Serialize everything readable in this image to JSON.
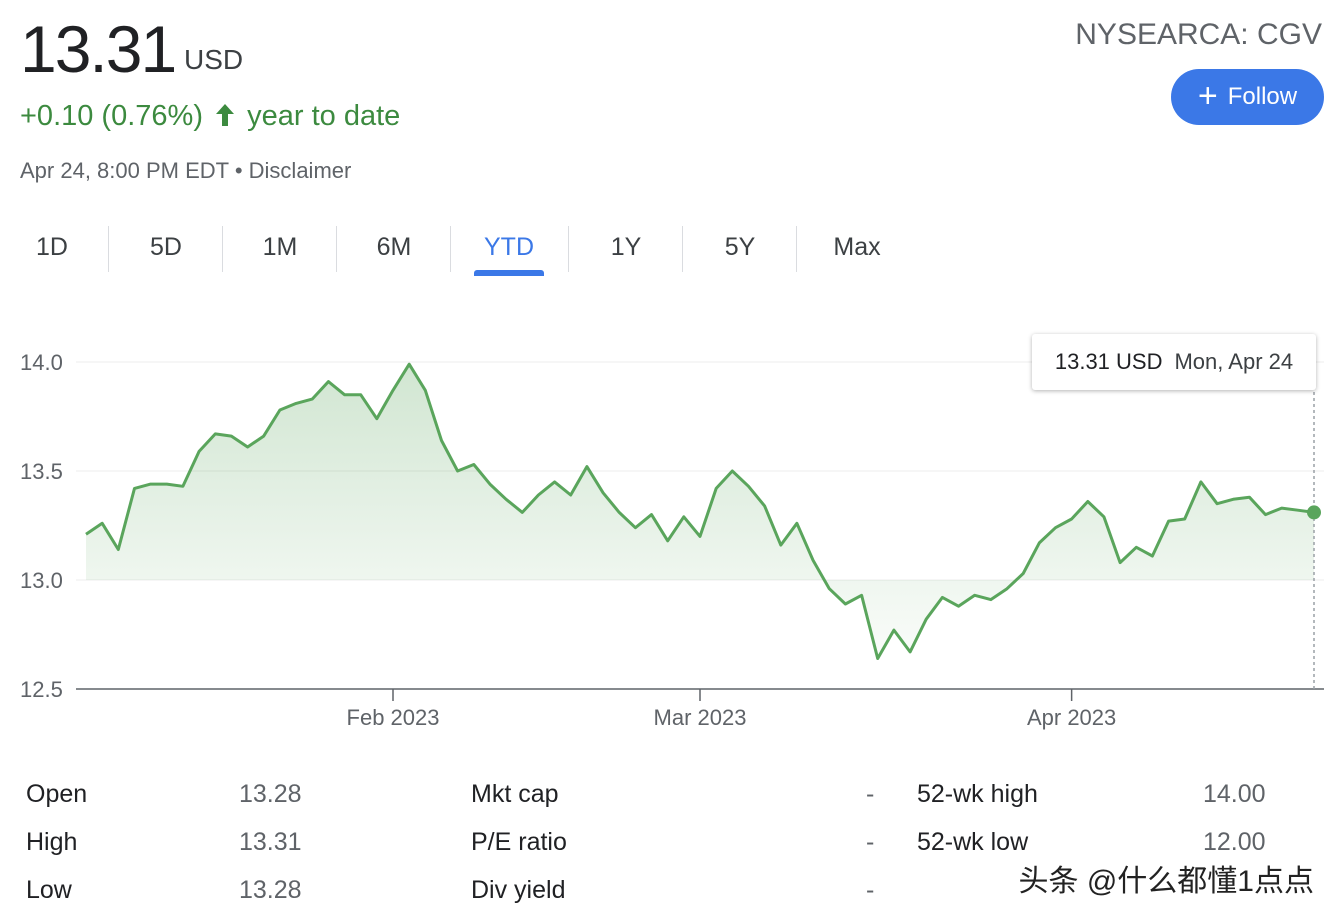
{
  "quote": {
    "price": "13.31",
    "currency": "USD",
    "change": "+0.10 (0.76%)",
    "period": "year to date",
    "timestamp": "Apr 24, 8:00 PM EDT",
    "disclaimer": "Disclaimer",
    "separator": "•",
    "ticker": "NYSEARCA: CGV",
    "follow_label": "Follow"
  },
  "tabs": [
    "1D",
    "5D",
    "1M",
    "6M",
    "YTD",
    "1Y",
    "5Y",
    "Max"
  ],
  "active_tab": "YTD",
  "tooltip": {
    "price": "13.31 USD",
    "date": "Mon, Apr 24"
  },
  "colors": {
    "up": "#3c8a3f",
    "line": "#5aa55c",
    "accent": "#3b78e7"
  },
  "chart_data": {
    "type": "area",
    "title": "",
    "xlabel": "",
    "ylabel": "",
    "ylim": [
      12.5,
      14.0
    ],
    "yticks": [
      12.5,
      13.0,
      13.5,
      14.0
    ],
    "ytick_labels": [
      "12.5",
      "13.0",
      "13.5",
      "14.0"
    ],
    "xtick_labels": [
      "Feb 2023",
      "Mar 2023",
      "Apr 2023"
    ],
    "xtick_index": [
      19,
      38,
      61
    ],
    "grid": true,
    "series": [
      {
        "values": [
          13.21,
          13.26,
          13.14,
          13.42,
          13.44,
          13.44,
          13.43,
          13.59,
          13.67,
          13.66,
          13.61,
          13.66,
          13.78,
          13.81,
          13.83,
          13.91,
          13.85,
          13.85,
          13.74,
          13.87,
          13.99,
          13.87,
          13.64,
          13.5,
          13.53,
          13.44,
          13.37,
          13.31,
          13.39,
          13.45,
          13.39,
          13.52,
          13.4,
          13.31,
          13.24,
          13.3,
          13.18,
          13.29,
          13.2,
          13.42,
          13.5,
          13.43,
          13.34,
          13.16,
          13.26,
          13.09,
          12.96,
          12.89,
          12.93,
          12.64,
          12.77,
          12.67,
          12.82,
          12.92,
          12.88,
          12.93,
          12.91,
          12.96,
          13.03,
          13.17,
          13.24,
          13.28,
          13.36,
          13.29,
          13.08,
          13.15,
          13.11,
          13.27,
          13.28,
          13.45,
          13.35,
          13.37,
          13.38,
          13.3,
          13.33,
          13.32,
          13.31
        ]
      }
    ]
  },
  "stats": [
    {
      "label": "Open",
      "value": "13.28"
    },
    {
      "label": "High",
      "value": "13.31"
    },
    {
      "label": "Low",
      "value": "13.28"
    },
    {
      "label": "Mkt cap",
      "value": "-"
    },
    {
      "label": "P/E ratio",
      "value": "-"
    },
    {
      "label": "Div yield",
      "value": "-"
    },
    {
      "label": "52-wk high",
      "value": "14.00"
    },
    {
      "label": "52-wk low",
      "value": "12.00"
    }
  ],
  "watermark": "头条 @什么都懂1点点"
}
